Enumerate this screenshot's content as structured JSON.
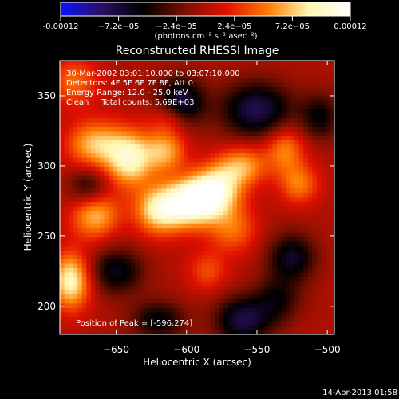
{
  "chart_data": {
    "type": "heatmap",
    "colorbar": {
      "ticks": [
        "-0.00012",
        "−7.2e−05",
        "−2.4e−05",
        "2.4e−05",
        "7.2e−05",
        "0.00012"
      ],
      "tick_values": [
        -0.00012,
        -7.2e-05,
        -2.4e-05,
        2.4e-05,
        7.2e-05,
        0.00012
      ],
      "range": [
        -0.00012,
        0.00012
      ],
      "label": "(photons cm⁻² s⁻¹ asec⁻²)",
      "colors": [
        "#0a14ff",
        "#2a1060",
        "#000000",
        "#7a1000",
        "#e01000",
        "#ff7a00",
        "#fff6b0",
        "#ffffff"
      ]
    },
    "title": "Reconstructed RHESSI Image",
    "annotations": [
      "30-Mar-2002 03:01:10.000 to 03:07:10.000",
      "Detectors: 4F 5F 6F 7F 8F, Att 0",
      "Energy Range: 12.0 - 25.0 keV",
      "Clean     Total counts: 5.69E+03"
    ],
    "peak_label": "Position of Peak = [-596,274]",
    "peak": {
      "x": -596,
      "y": 274
    },
    "xlabel": "Heliocentric X (arcsec)",
    "ylabel": "Heliocentric Y (arcsec)",
    "xlim": [
      -690,
      -495
    ],
    "ylim": [
      180,
      375
    ],
    "x_ticks": [
      -650,
      -600,
      -550,
      -500
    ],
    "y_ticks": [
      200,
      250,
      300,
      350
    ],
    "x_tick_labels": [
      "−650",
      "−600",
      "−550",
      "−500"
    ],
    "y_tick_labels": [
      "200",
      "250",
      "300",
      "350"
    ],
    "blobs": [
      {
        "x": -596,
        "y": 274,
        "value": 0.00012,
        "sx": 14,
        "sy": 12
      },
      {
        "x": -578,
        "y": 284,
        "value": 8.5e-05,
        "sx": 12,
        "sy": 12
      },
      {
        "x": -620,
        "y": 268,
        "value": 8e-05,
        "sx": 12,
        "sy": 12
      },
      {
        "x": -640,
        "y": 305,
        "value": 9e-05,
        "sx": 12,
        "sy": 14
      },
      {
        "x": -615,
        "y": 310,
        "value": 6e-05,
        "sx": 10,
        "sy": 10
      },
      {
        "x": -665,
        "y": 315,
        "value": 7e-05,
        "sx": 14,
        "sy": 12
      },
      {
        "x": -665,
        "y": 265,
        "value": 7e-05,
        "sx": 12,
        "sy": 12
      },
      {
        "x": -682,
        "y": 218,
        "value": 9.5e-05,
        "sx": 10,
        "sy": 14
      },
      {
        "x": -560,
        "y": 300,
        "value": 6e-05,
        "sx": 12,
        "sy": 10
      },
      {
        "x": -567,
        "y": 255,
        "value": 4.5e-05,
        "sx": 12,
        "sy": 12
      },
      {
        "x": -530,
        "y": 312,
        "value": 5.5e-05,
        "sx": 10,
        "sy": 12
      },
      {
        "x": -520,
        "y": 287,
        "value": 5e-05,
        "sx": 10,
        "sy": 10
      },
      {
        "x": -612,
        "y": 335,
        "value": 5e-05,
        "sx": 10,
        "sy": 10
      },
      {
        "x": -585,
        "y": 225,
        "value": 3.5e-05,
        "sx": 10,
        "sy": 10
      },
      {
        "x": -680,
        "y": 360,
        "value": 4.5e-05,
        "sx": 12,
        "sy": 12
      },
      {
        "x": -605,
        "y": 345,
        "value": -9e-05,
        "sx": 12,
        "sy": 12
      },
      {
        "x": -550,
        "y": 340,
        "value": -8e-05,
        "sx": 18,
        "sy": 14
      },
      {
        "x": -560,
        "y": 190,
        "value": -7.5e-05,
        "sx": 14,
        "sy": 12
      },
      {
        "x": -525,
        "y": 235,
        "value": -6.5e-05,
        "sx": 12,
        "sy": 12
      },
      {
        "x": -650,
        "y": 225,
        "value": -6e-05,
        "sx": 14,
        "sy": 12
      },
      {
        "x": -620,
        "y": 190,
        "value": -5.5e-05,
        "sx": 14,
        "sy": 10
      },
      {
        "x": -670,
        "y": 285,
        "value": -5e-05,
        "sx": 10,
        "sy": 10
      },
      {
        "x": -535,
        "y": 205,
        "value": -4.5e-05,
        "sx": 12,
        "sy": 12
      },
      {
        "x": -505,
        "y": 335,
        "value": -5e-05,
        "sx": 10,
        "sy": 12
      }
    ]
  },
  "footer": {
    "timestamp": "14-Apr-2013 01:58"
  }
}
